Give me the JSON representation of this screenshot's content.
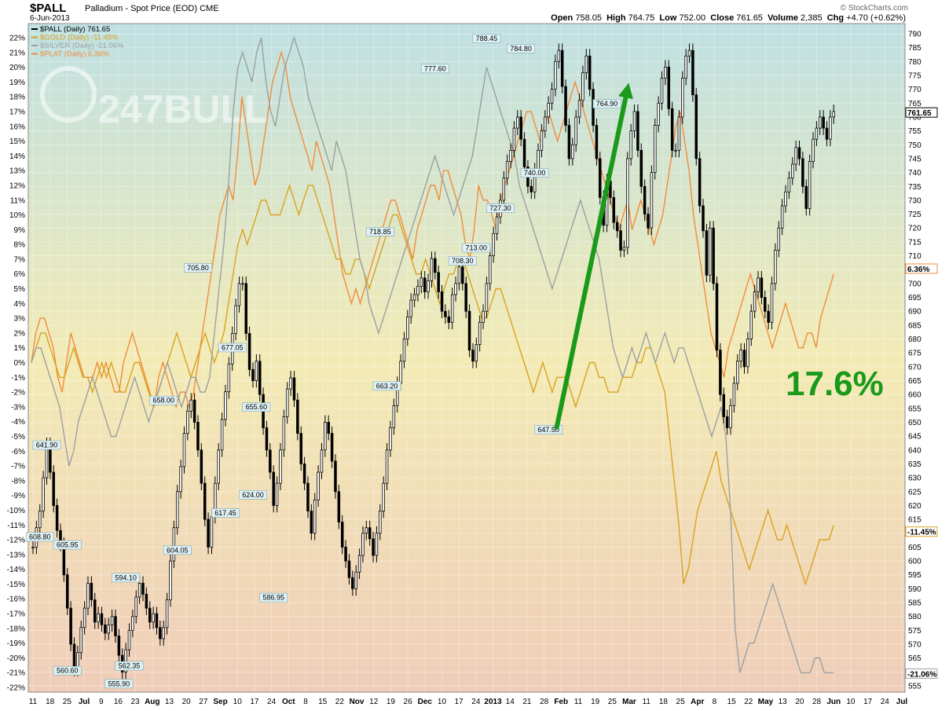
{
  "header": {
    "symbol": "$PALL",
    "description": "Palladium - Spot Price (EOD)",
    "exchange": "CME",
    "date": "6-Jun-2013",
    "stats": {
      "open_label": "Open",
      "open": "758.05",
      "high_label": "High",
      "high": "764.75",
      "low_label": "Low",
      "low": "752.00",
      "close_label": "Close",
      "close": "761.65",
      "volume_label": "Volume",
      "volume": "2,385",
      "chg_label": "Chg",
      "chg": "+4.70 (+0.62%)"
    },
    "credit": "© StockCharts.com"
  },
  "legend": [
    {
      "text": "$PALL (Daily) 761.65",
      "color": "#000000"
    },
    {
      "text": "$GOLD (Daily) -11.45%",
      "color": "#d9a21e"
    },
    {
      "text": "$SILVER (Daily) -21.06%",
      "color": "#9aa0a2"
    },
    {
      "text": "$PLAT (Daily) 6.36%",
      "color": "#f08c3c"
    }
  ],
  "watermark": "247BULL",
  "annotation": {
    "text": "17.6%",
    "color": "#1a9a1a"
  },
  "colors": {
    "pall": "#000000",
    "gold": "#d9a21e",
    "silver": "#9aa0a2",
    "plat": "#f08c3c",
    "arrow": "#1a9a1a"
  },
  "chart_data": {
    "type": "line",
    "title": "$PALL Palladium - Spot Price (EOD)",
    "x_ticks": [
      "11",
      "18",
      "25",
      "Jul",
      "9",
      "16",
      "23",
      "Aug",
      "13",
      "20",
      "27",
      "Sep",
      "10",
      "17",
      "24",
      "Oct",
      "8",
      "15",
      "22",
      "Nov",
      "12",
      "19",
      "26",
      "Dec",
      "10",
      "17",
      "24",
      "2013",
      "14",
      "21",
      "28",
      "Feb",
      "11",
      "19",
      "25",
      "Mar",
      "11",
      "18",
      "25",
      "Apr",
      "8",
      "15",
      "22",
      "May",
      "13",
      "20",
      "28",
      "Jun",
      "10",
      "17",
      "24",
      "Jul"
    ],
    "right_axis": {
      "min": 555,
      "max": 790,
      "step": 5
    },
    "left_axis": {
      "min": -22,
      "max": 22,
      "step": 1,
      "unit": "%"
    },
    "end_labels": {
      "pall": "761.65",
      "plat": "6.36%",
      "gold": "-11.45%",
      "silver": "-21.06%"
    },
    "price_labels": [
      {
        "x": 2,
        "value": 608.8,
        "text": "608.80"
      },
      {
        "x": 4,
        "value": 641.9,
        "text": "641.90"
      },
      {
        "x": 10,
        "value": 605.95,
        "text": "605.95"
      },
      {
        "x": 10,
        "value": 560.6,
        "text": "560.60"
      },
      {
        "x": 25,
        "value": 555.9,
        "text": "555.90"
      },
      {
        "x": 27,
        "value": 594.1,
        "text": "594.10"
      },
      {
        "x": 28,
        "value": 562.35,
        "text": "562.35"
      },
      {
        "x": 38,
        "value": 658.0,
        "text": "658.00"
      },
      {
        "x": 42,
        "value": 604.05,
        "text": "604.05"
      },
      {
        "x": 48,
        "value": 705.8,
        "text": "705.80"
      },
      {
        "x": 56,
        "value": 617.45,
        "text": "617.45"
      },
      {
        "x": 58,
        "value": 677.05,
        "text": "677.05"
      },
      {
        "x": 65,
        "value": 655.6,
        "text": "655.60"
      },
      {
        "x": 64,
        "value": 624.0,
        "text": "624.00"
      },
      {
        "x": 70,
        "value": 586.95,
        "text": "586.95"
      },
      {
        "x": 103,
        "value": 663.2,
        "text": "663.20"
      },
      {
        "x": 101,
        "value": 718.85,
        "text": "718.85"
      },
      {
        "x": 117,
        "value": 777.6,
        "text": "777.60"
      },
      {
        "x": 125,
        "value": 708.3,
        "text": "708.30"
      },
      {
        "x": 129,
        "value": 713.0,
        "text": "713.00"
      },
      {
        "x": 132,
        "value": 788.45,
        "text": "788.45"
      },
      {
        "x": 136,
        "value": 727.3,
        "text": "727.30"
      },
      {
        "x": 142,
        "value": 784.8,
        "text": "784.80"
      },
      {
        "x": 146,
        "value": 740.0,
        "text": "740.00"
      },
      {
        "x": 150,
        "value": 647.5,
        "text": "647.50"
      },
      {
        "x": 167,
        "value": 764.9,
        "text": "764.90"
      }
    ],
    "pall_close": [
      605,
      612,
      618,
      630,
      642,
      632,
      620,
      611,
      606,
      595,
      583,
      570,
      561,
      567,
      576,
      583,
      592,
      586,
      578,
      581,
      577,
      574,
      577,
      580,
      573,
      566,
      560,
      568,
      575,
      580,
      587,
      592,
      588,
      583,
      578,
      581,
      576,
      572,
      576,
      586,
      600,
      612,
      625,
      634,
      646,
      654,
      658,
      650,
      640,
      628,
      615,
      605,
      616,
      628,
      640,
      651,
      661,
      671,
      682,
      692,
      700,
      700,
      682,
      669,
      665,
      672,
      660,
      648,
      640,
      632,
      620,
      628,
      640,
      652,
      662,
      666,
      658,
      646,
      635,
      628,
      618,
      610,
      622,
      632,
      640,
      650,
      646,
      636,
      625,
      614,
      605,
      600,
      594,
      590,
      596,
      602,
      610,
      612,
      608,
      602,
      610,
      618,
      628,
      640,
      648,
      656,
      664,
      672,
      680,
      688,
      694,
      696,
      699,
      702,
      697,
      701,
      709,
      704,
      697,
      690,
      688,
      686,
      696,
      700,
      706,
      700,
      690,
      676,
      672,
      678,
      686,
      690,
      700,
      710,
      718,
      724,
      730,
      738,
      744,
      748,
      756,
      760,
      752,
      742,
      735,
      733,
      741,
      748,
      755,
      760,
      765,
      770,
      780,
      784,
      771,
      757,
      745,
      750,
      760,
      766,
      776,
      782,
      770,
      757,
      745,
      731,
      721,
      737,
      731,
      722,
      719,
      712,
      713,
      745,
      755,
      762,
      748,
      735,
      725,
      720,
      740,
      757,
      765,
      774,
      778,
      763,
      748,
      748,
      760,
      774,
      782,
      784,
      768,
      745,
      728,
      719,
      703,
      720,
      700,
      676,
      660,
      652,
      648,
      656,
      664,
      672,
      676,
      670,
      680,
      690,
      697,
      702,
      695,
      690,
      686,
      700,
      712,
      720,
      728,
      733,
      738,
      743,
      749,
      745,
      735,
      727,
      744,
      752,
      756,
      760,
      756,
      752,
      760,
      762
    ],
    "plat_pct": [
      0,
      2,
      3,
      3,
      2,
      1,
      -1,
      -2,
      0,
      2,
      1,
      0,
      -1,
      -1,
      -1,
      0,
      -1,
      0,
      -1,
      -2,
      -2,
      0,
      1,
      2,
      1,
      0,
      -1,
      -2,
      -3,
      -1,
      0,
      -1,
      -2,
      -3,
      -2,
      -2,
      -3,
      -2,
      0,
      2,
      4,
      6,
      8,
      10,
      11,
      12,
      11,
      14,
      18,
      16,
      14,
      12,
      13,
      15,
      17,
      19,
      20,
      21,
      20,
      18,
      17,
      16,
      15,
      14,
      13,
      15,
      14,
      13,
      12,
      10,
      8,
      6,
      5,
      4,
      5,
      4,
      5,
      6,
      7,
      8,
      9,
      10,
      11,
      11,
      10,
      9,
      8,
      7,
      9,
      10,
      11,
      12,
      12,
      11,
      13,
      13,
      12,
      11,
      10,
      8,
      7,
      9,
      12,
      11,
      11,
      10,
      9,
      11,
      12,
      13,
      14,
      15,
      16,
      17,
      17,
      16,
      15,
      16,
      17,
      16,
      15,
      16,
      17,
      18,
      19,
      18,
      17,
      16,
      15,
      14,
      13,
      12,
      11,
      10,
      9,
      10,
      11,
      9,
      10,
      11,
      10,
      9,
      8,
      9,
      10,
      12,
      14,
      16,
      17,
      15,
      13,
      10,
      8,
      6,
      4,
      2,
      1,
      0,
      -1,
      1,
      2,
      3,
      4,
      5,
      6,
      5,
      4,
      3,
      2,
      1,
      2,
      3,
      4,
      3,
      2,
      1,
      1,
      2,
      2,
      1,
      3,
      4,
      5,
      6
    ],
    "gold_pct": [
      0,
      1,
      2,
      2,
      1,
      0,
      -1,
      -1,
      0,
      1,
      0,
      -1,
      -1,
      -2,
      -1,
      0,
      -1,
      0,
      -1,
      -2,
      -2,
      -1,
      0,
      0,
      -1,
      -2,
      -3,
      -2,
      -1,
      0,
      1,
      2,
      1,
      0,
      -1,
      0,
      1,
      2,
      1,
      0,
      1,
      2,
      4,
      6,
      8,
      9,
      8,
      9,
      10,
      11,
      11,
      10,
      10,
      10,
      11,
      12,
      11,
      10,
      11,
      12,
      12,
      11,
      10,
      9,
      8,
      7,
      7,
      6,
      6,
      7,
      7,
      6,
      5,
      6,
      7,
      8,
      9,
      10,
      10,
      9,
      8,
      7,
      6,
      6,
      7,
      6,
      5,
      4,
      5,
      6,
      6,
      7,
      7,
      6,
      5,
      4,
      3,
      3,
      4,
      5,
      5,
      4,
      3,
      2,
      1,
      0,
      -1,
      -2,
      -1,
      0,
      -1,
      -2,
      -1,
      -1,
      -1,
      -2,
      -3,
      -2,
      -1,
      0,
      0,
      -1,
      -1,
      -2,
      -2,
      -2,
      -1,
      -1,
      -1,
      0,
      0,
      1,
      1,
      0,
      -1,
      -2,
      -5,
      -8,
      -11,
      -15,
      -14,
      -12,
      -10,
      -9,
      -8,
      -7,
      -6,
      -8,
      -9,
      -10,
      -11,
      -12,
      -13,
      -14,
      -13,
      -12,
      -11,
      -10,
      -11,
      -12,
      -12,
      -11,
      -12,
      -13,
      -14,
      -15,
      -14,
      -13,
      -12,
      -12,
      -12,
      -11
    ],
    "silver_pct": [
      0,
      1,
      1,
      0,
      -1,
      -2,
      -3,
      -5,
      -7,
      -6,
      -4,
      -3,
      -2,
      -1,
      -2,
      -3,
      -4,
      -5,
      -5,
      -4,
      -3,
      -2,
      -1,
      -2,
      -3,
      -4,
      -3,
      -2,
      -1,
      0,
      -1,
      -2,
      -3,
      -2,
      -1,
      -1,
      -2,
      -2,
      -1,
      2,
      5,
      8,
      12,
      17,
      20,
      21,
      20,
      19,
      21,
      22,
      19,
      17,
      16,
      18,
      20,
      21,
      22,
      21,
      20,
      18,
      17,
      16,
      15,
      14,
      13,
      15,
      14,
      13,
      11,
      9,
      7,
      6,
      4,
      3,
      2,
      3,
      4,
      5,
      6,
      7,
      8,
      9,
      10,
      11,
      12,
      13,
      14,
      13,
      12,
      11,
      10,
      11,
      12,
      13,
      14,
      16,
      18,
      20,
      19,
      18,
      17,
      16,
      15,
      14,
      12,
      11,
      10,
      9,
      8,
      7,
      6,
      5,
      6,
      7,
      8,
      9,
      10,
      11,
      10,
      9,
      8,
      7,
      5,
      3,
      1,
      0,
      -1,
      0,
      1,
      0,
      1,
      2,
      1,
      0,
      1,
      2,
      1,
      0,
      1,
      1,
      0,
      -1,
      -2,
      -3,
      -4,
      -5,
      -4,
      -3,
      -5,
      -10,
      -18,
      -21,
      -20,
      -19,
      -19,
      -18,
      -17,
      -16,
      -15,
      -16,
      -17,
      -18,
      -19,
      -20,
      -21,
      -21,
      -21,
      -20,
      -20,
      -21,
      -21,
      -21
    ],
    "pct_series_order": [
      "plat",
      "gold",
      "silver"
    ],
    "annotation": {
      "text": "17.6%",
      "from_value": 647.5,
      "to_value": 761.65
    }
  }
}
